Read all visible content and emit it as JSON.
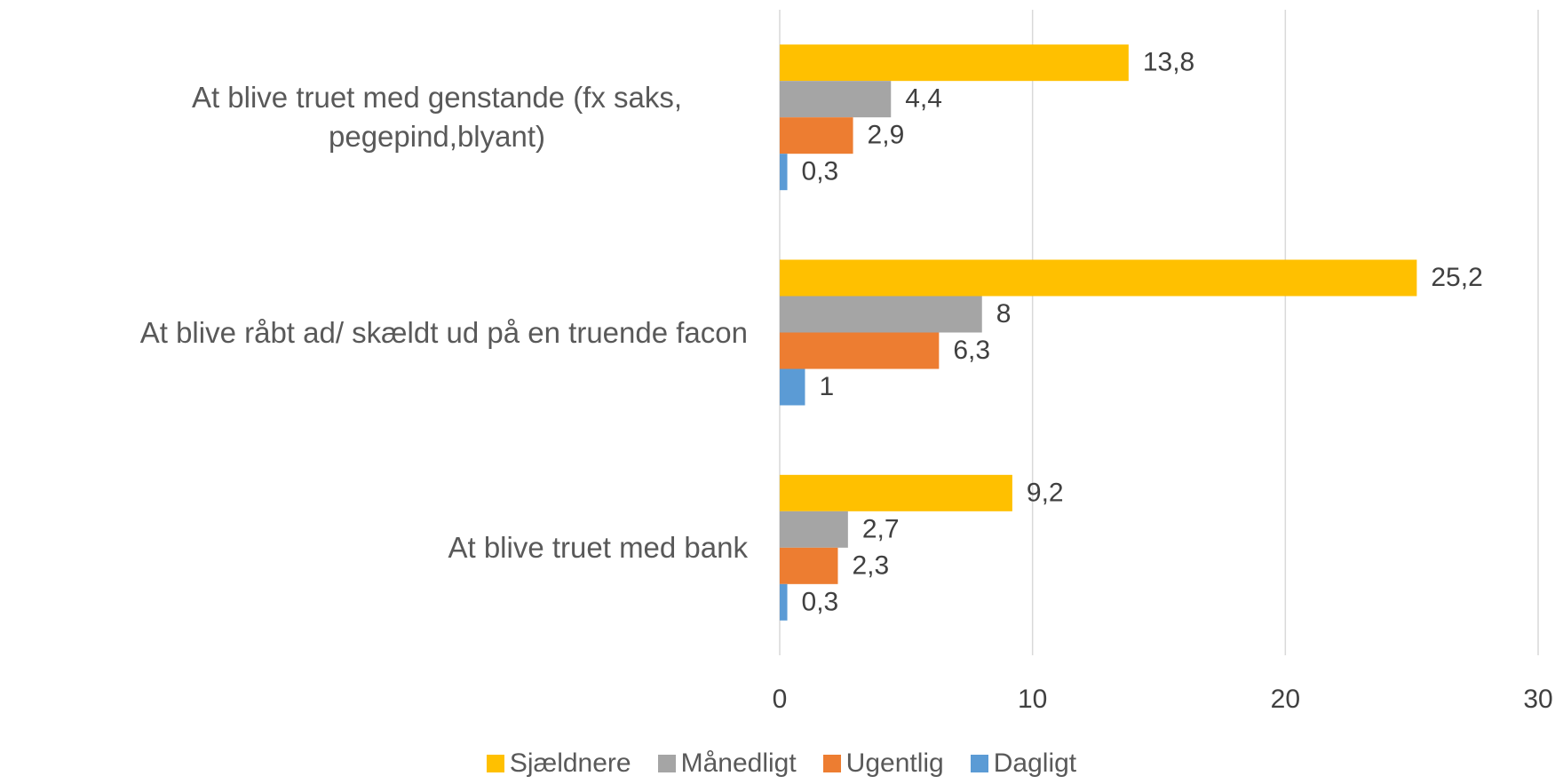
{
  "chart_data": {
    "type": "hbar",
    "categories": [
      "At blive truet med genstande (fx saks, pegepind,blyant)",
      "At blive råbt ad/ skældt ud på en truende facon",
      "At blive truet med bank"
    ],
    "series": [
      {
        "name": "Sjældnere",
        "color": "#FFC000",
        "values": [
          13.8,
          25.2,
          9.2
        ],
        "value_labels": [
          "13,8",
          "25,2",
          "9,2"
        ]
      },
      {
        "name": "Månedligt",
        "color": "#A5A5A5",
        "values": [
          4.4,
          8,
          2.7
        ],
        "value_labels": [
          "4,4",
          "8",
          "2,7"
        ]
      },
      {
        "name": "Ugentlig",
        "color": "#ED7D31",
        "values": [
          2.9,
          6.3,
          2.3
        ],
        "value_labels": [
          "2,9",
          "6,3",
          "2,3"
        ]
      },
      {
        "name": "Dagligt",
        "color": "#5B9BD5",
        "values": [
          0.3,
          1,
          0.3
        ],
        "value_labels": [
          "0,3",
          "1",
          "0,3"
        ]
      }
    ],
    "xlim": [
      0,
      30
    ],
    "xticks": [
      0,
      10,
      20,
      30
    ],
    "grid": true,
    "legend": "bottom"
  }
}
